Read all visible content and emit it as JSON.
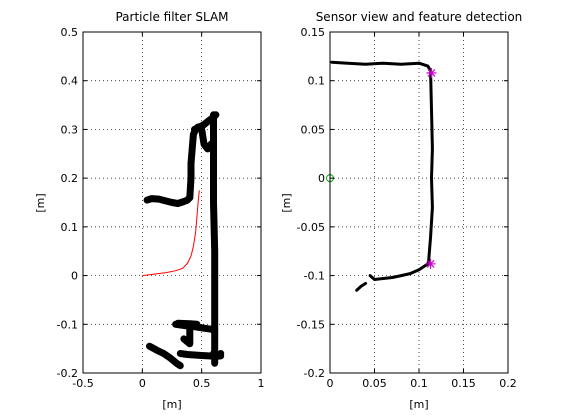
{
  "chart_data": [
    {
      "type": "scatter",
      "title": "Particle filter SLAM",
      "xlabel": "[m]",
      "ylabel": "[m]",
      "xlim": [
        -0.5,
        1
      ],
      "ylim": [
        -0.2,
        0.5
      ],
      "xticks": [
        -0.5,
        0,
        0.5,
        1
      ],
      "yticks": [
        -0.2,
        -0.1,
        0,
        0.1,
        0.2,
        0.3,
        0.4,
        0.5
      ],
      "xtick_labels": [
        "-0.5",
        "0",
        "0.5",
        "1"
      ],
      "ytick_labels": [
        "-0.2",
        "-0.1",
        "0",
        "0.1",
        "0.2",
        "0.3",
        "0.4",
        "0.5"
      ],
      "grid": true,
      "series": [
        {
          "kind": "map-points",
          "color": "#000000",
          "polylines": [
            [
              [
                0.04,
                0.155
              ],
              [
                0.08,
                0.158
              ],
              [
                0.14,
                0.157
              ],
              [
                0.2,
                0.153
              ],
              [
                0.25,
                0.15
              ],
              [
                0.3,
                0.148
              ],
              [
                0.35,
                0.152
              ],
              [
                0.38,
                0.155
              ],
              [
                0.4,
                0.16
              ]
            ],
            [
              [
                0.4,
                0.16
              ],
              [
                0.41,
                0.2
              ],
              [
                0.41,
                0.23
              ],
              [
                0.42,
                0.26
              ],
              [
                0.43,
                0.29
              ],
              [
                0.45,
                0.3
              ],
              [
                0.47,
                0.305
              ]
            ],
            [
              [
                0.44,
                0.3
              ],
              [
                0.48,
                0.305
              ],
              [
                0.52,
                0.31
              ],
              [
                0.56,
                0.318
              ],
              [
                0.6,
                0.325
              ],
              [
                0.62,
                0.33
              ]
            ],
            [
              [
                0.6,
                0.33
              ],
              [
                0.6,
                0.25
              ],
              [
                0.6,
                0.15
              ],
              [
                0.61,
                0.05
              ],
              [
                0.61,
                -0.05
              ],
              [
                0.61,
                -0.13
              ],
              [
                0.61,
                -0.18
              ]
            ],
            [
              [
                0.28,
                -0.1
              ],
              [
                0.36,
                -0.103
              ],
              [
                0.44,
                -0.105
              ],
              [
                0.52,
                -0.108
              ],
              [
                0.58,
                -0.11
              ],
              [
                0.61,
                -0.112
              ]
            ],
            [
              [
                0.4,
                -0.1
              ],
              [
                0.4,
                -0.14
              ],
              [
                0.35,
                -0.13
              ]
            ],
            [
              [
                0.3,
                -0.098
              ],
              [
                0.4,
                -0.099
              ],
              [
                0.46,
                -0.1
              ]
            ],
            [
              [
                0.6,
                -0.16
              ],
              [
                0.63,
                -0.165
              ],
              [
                0.66,
                -0.16
              ]
            ],
            [
              [
                0.32,
                -0.16
              ],
              [
                0.38,
                -0.162
              ],
              [
                0.44,
                -0.163
              ],
              [
                0.5,
                -0.164
              ],
              [
                0.56,
                -0.165
              ],
              [
                0.62,
                -0.166
              ],
              [
                0.66,
                -0.165
              ]
            ],
            [
              [
                0.06,
                -0.145
              ],
              [
                0.12,
                -0.153
              ],
              [
                0.18,
                -0.16
              ],
              [
                0.24,
                -0.17
              ],
              [
                0.29,
                -0.18
              ],
              [
                0.32,
                -0.185
              ]
            ],
            [
              [
                0.5,
                0.3
              ],
              [
                0.52,
                0.27
              ],
              [
                0.55,
                0.26
              ],
              [
                0.58,
                0.27
              ]
            ]
          ]
        },
        {
          "kind": "trajectory",
          "color": "#ff0000",
          "points": [
            [
              0.0,
              0.0
            ],
            [
              0.1,
              0.003
            ],
            [
              0.2,
              0.006
            ],
            [
              0.28,
              0.01
            ],
            [
              0.34,
              0.015
            ],
            [
              0.38,
              0.025
            ],
            [
              0.41,
              0.04
            ],
            [
              0.43,
              0.06
            ],
            [
              0.45,
              0.09
            ],
            [
              0.46,
              0.12
            ],
            [
              0.47,
              0.15
            ],
            [
              0.48,
              0.175
            ]
          ]
        }
      ]
    },
    {
      "type": "scatter",
      "title": "Sensor view and feature detection",
      "xlabel": "[m]",
      "ylabel": "[m]",
      "xlim": [
        0,
        0.2
      ],
      "ylim": [
        -0.2,
        0.15
      ],
      "xticks": [
        0,
        0.05,
        0.1,
        0.15,
        0.2
      ],
      "yticks": [
        -0.2,
        -0.15,
        -0.1,
        -0.05,
        0,
        0.05,
        0.1,
        0.15
      ],
      "xtick_labels": [
        "0",
        "0.05",
        "0.1",
        "0.15",
        "0.2"
      ],
      "ytick_labels": [
        "-0.2",
        "-0.15",
        "-0.1",
        "-0.05",
        "0",
        "0.05",
        "0.1",
        "0.15"
      ],
      "grid": true,
      "series": [
        {
          "kind": "scan-points",
          "color": "#000000",
          "polylines": [
            [
              [
                0.002,
                0.119
              ],
              [
                0.02,
                0.118
              ],
              [
                0.04,
                0.117
              ],
              [
                0.06,
                0.118
              ],
              [
                0.08,
                0.117
              ],
              [
                0.1,
                0.118
              ],
              [
                0.11,
                0.115
              ],
              [
                0.113,
                0.11
              ]
            ],
            [
              [
                0.113,
                0.108
              ],
              [
                0.114,
                0.07
              ],
              [
                0.115,
                0.03
              ],
              [
                0.114,
                0.0
              ],
              [
                0.115,
                -0.03
              ],
              [
                0.113,
                -0.06
              ],
              [
                0.111,
                -0.083
              ],
              [
                0.11,
                -0.088
              ]
            ],
            [
              [
                0.11,
                -0.088
              ],
              [
                0.1,
                -0.094
              ],
              [
                0.09,
                -0.098
              ],
              [
                0.08,
                -0.1
              ],
              [
                0.07,
                -0.102
              ],
              [
                0.06,
                -0.103
              ],
              [
                0.05,
                -0.104
              ],
              [
                0.045,
                -0.1
              ]
            ],
            [
              [
                0.03,
                -0.115
              ],
              [
                0.035,
                -0.111
              ],
              [
                0.04,
                -0.108
              ]
            ]
          ]
        },
        {
          "kind": "detected-features",
          "color": "#cc00cc",
          "marker": "*",
          "points": [
            [
              0.114,
              0.108
            ],
            [
              0.113,
              -0.088
            ]
          ]
        },
        {
          "kind": "sensor-origin",
          "color": "#00a000",
          "marker": "o",
          "points": [
            [
              0.0,
              0.0
            ]
          ]
        }
      ]
    }
  ]
}
